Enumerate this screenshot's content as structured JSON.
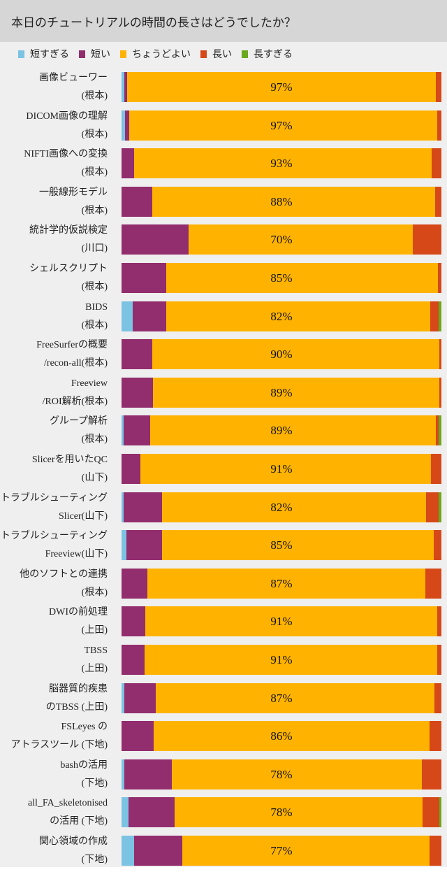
{
  "chart_data": {
    "type": "bar",
    "orientation": "horizontal-stacked-100",
    "title": "本日のチュートリアルの時間の長さはどうでしたか？",
    "legend_position": "top",
    "series_names": [
      "短すぎる",
      "短い",
      "ちょうどよい",
      "長い",
      "長すぎる"
    ],
    "colors": [
      "#7cc3e3",
      "#922d6e",
      "#ffb300",
      "#d64818",
      "#6aa91c"
    ],
    "rows": [
      {
        "label1": "画像ビューワー",
        "label2": "(根本)",
        "pct_label": "97%",
        "values": [
          0.8,
          1,
          96.4,
          1.8,
          0
        ]
      },
      {
        "label1": "DICOM画像の理解",
        "label2": "(根本)",
        "pct_label": "97%",
        "values": [
          1,
          1.3,
          96.4,
          1.3,
          0
        ]
      },
      {
        "label1": "NIFTI画像への変換",
        "label2": "(根本)",
        "pct_label": "93%",
        "values": [
          0,
          4,
          93,
          3,
          0
        ]
      },
      {
        "label1": "一般線形モデル",
        "label2": "(根本)",
        "pct_label": "88%",
        "values": [
          0,
          9.6,
          88.4,
          2,
          0
        ]
      },
      {
        "label1": "統計学的仮説検定",
        "label2": "(川口)",
        "pct_label": "70%",
        "values": [
          0,
          21,
          70,
          9,
          0
        ]
      },
      {
        "label1": "シェルスクリプト",
        "label2": "(根本)",
        "pct_label": "85%",
        "values": [
          0,
          14,
          85,
          1,
          0
        ]
      },
      {
        "label1": "BIDS",
        "label2": "(根本)",
        "pct_label": "82%",
        "values": [
          3.4,
          10.6,
          82.4,
          2.8,
          0.8
        ]
      },
      {
        "label1": "FreeSurferの概要",
        "label2": "/recon-all(根本)",
        "pct_label": "90%",
        "values": [
          0,
          9.6,
          89.8,
          0.6,
          0
        ]
      },
      {
        "label1": "Freeview",
        "label2": "/ROI解析(根本)",
        "pct_label": "89%",
        "values": [
          0,
          9.8,
          89.5,
          0.7,
          0
        ]
      },
      {
        "label1": "グループ解析",
        "label2": "(根本)",
        "pct_label": "89%",
        "values": [
          0.7,
          8.2,
          89.4,
          0.9,
          0.8
        ]
      },
      {
        "label1": "Slicerを用いたQC",
        "label2": "(山下)",
        "pct_label": "91%",
        "values": [
          0,
          6,
          90.8,
          3.2,
          0
        ]
      },
      {
        "label1": "トラブルシューティング",
        "label2": "Slicer(山下)",
        "pct_label": "82%",
        "values": [
          0.7,
          11.9,
          82.5,
          4.1,
          0.8
        ]
      },
      {
        "label1": "トラブルシューティング",
        "label2": "Freeview(山下)",
        "pct_label": "85%",
        "values": [
          1.5,
          11.1,
          84.9,
          2.5,
          0
        ]
      },
      {
        "label1": "他のソフトとの連携",
        "label2": "(根本)",
        "pct_label": "87%",
        "values": [
          0,
          8,
          87,
          5,
          0
        ]
      },
      {
        "label1": "DWIの前処理",
        "label2": "(上田)",
        "pct_label": "91%",
        "values": [
          0,
          7.4,
          91.2,
          1.4,
          0
        ]
      },
      {
        "label1": "TBSS",
        "label2": "(上田)",
        "pct_label": "91%",
        "values": [
          0,
          7.2,
          91.4,
          1.4,
          0
        ]
      },
      {
        "label1": "脳器質的疾患",
        "label2": "のTBSS (上田)",
        "pct_label": "87%",
        "values": [
          0.8,
          9.8,
          87.2,
          2.2,
          0
        ]
      },
      {
        "label1": "FSLeyes の",
        "label2": "アトラスツール (下地)",
        "pct_label": "86%",
        "values": [
          0,
          10,
          86.2,
          3.8,
          0
        ]
      },
      {
        "label1": "bashの活用",
        "label2": "(下地)",
        "pct_label": "78%",
        "values": [
          0.8,
          14.9,
          78.2,
          6.1,
          0
        ]
      },
      {
        "label1": "all_FA_skeletonised",
        "label2": "の活用 (下地)",
        "pct_label": "78%",
        "values": [
          2.2,
          14.3,
          77.7,
          5.2,
          0.6
        ]
      },
      {
        "label1": "関心領域の作成",
        "label2": "(下地)",
        "pct_label": "77%",
        "values": [
          3.9,
          15.1,
          77.3,
          3.7,
          0
        ]
      }
    ]
  }
}
